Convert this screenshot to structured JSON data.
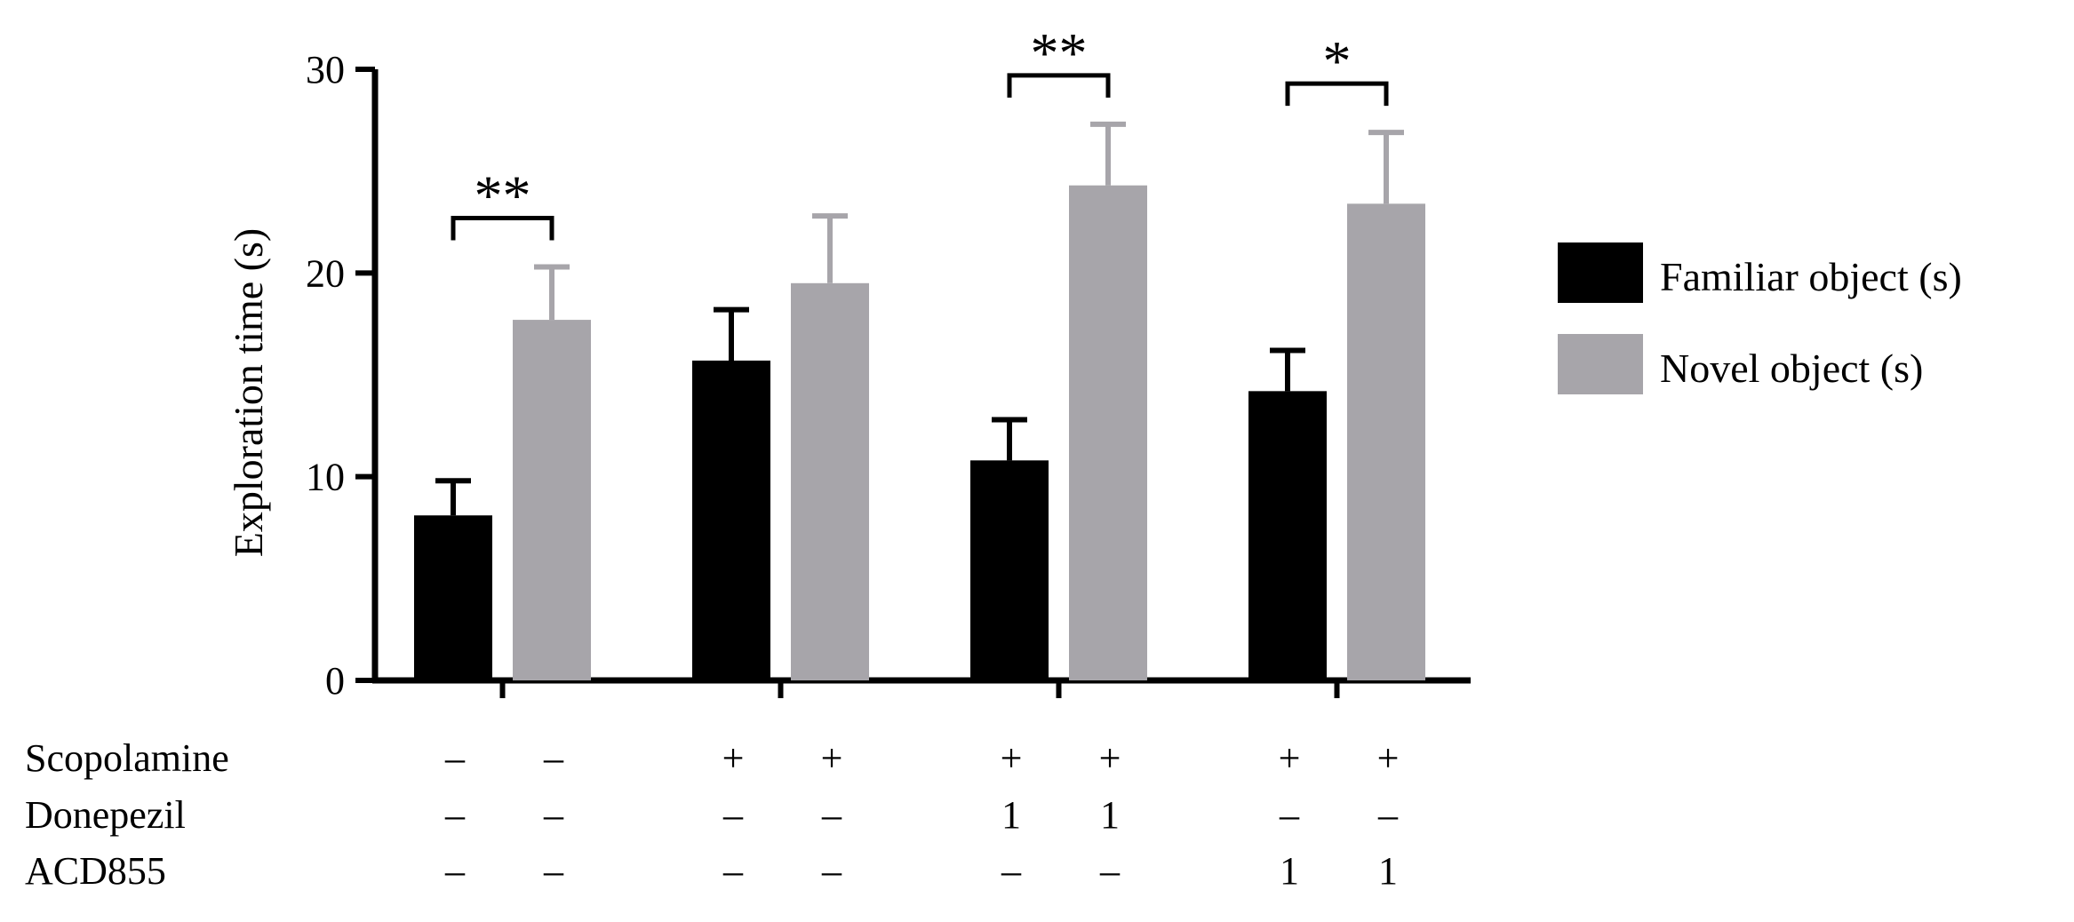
{
  "chart_data": {
    "type": "bar",
    "ylabel": "Exploration time (s)",
    "ylim": [
      0,
      30
    ],
    "yticks": [
      0,
      10,
      20,
      30
    ],
    "groups": 4,
    "series": [
      {
        "name": "Familiar object (s)",
        "color": "#000000",
        "values": [
          8.1,
          15.7,
          10.8,
          14.2
        ],
        "errors": [
          1.7,
          2.5,
          2.0,
          2.0
        ]
      },
      {
        "name": "Novel object (s)",
        "color": "#a7a5aa",
        "values": [
          17.7,
          19.5,
          24.3,
          23.4
        ],
        "errors": [
          2.6,
          3.3,
          3.0,
          3.5
        ]
      }
    ],
    "significance": [
      {
        "group": 0,
        "label": "**"
      },
      {
        "group": 2,
        "label": "**"
      },
      {
        "group": 3,
        "label": "*"
      }
    ],
    "treatment_table": {
      "rows": [
        {
          "label": "Scopolamine",
          "values": [
            "–",
            "–",
            "+",
            "+",
            "+",
            "+",
            "+",
            "+"
          ]
        },
        {
          "label": "Donepezil",
          "values": [
            "–",
            "–",
            "–",
            "–",
            "1",
            "1",
            "–",
            "–"
          ]
        },
        {
          "label": "ACD855",
          "values": [
            "–",
            "–",
            "–",
            "–",
            "–",
            "–",
            "1",
            "1"
          ]
        }
      ]
    },
    "legend_position": "right"
  }
}
